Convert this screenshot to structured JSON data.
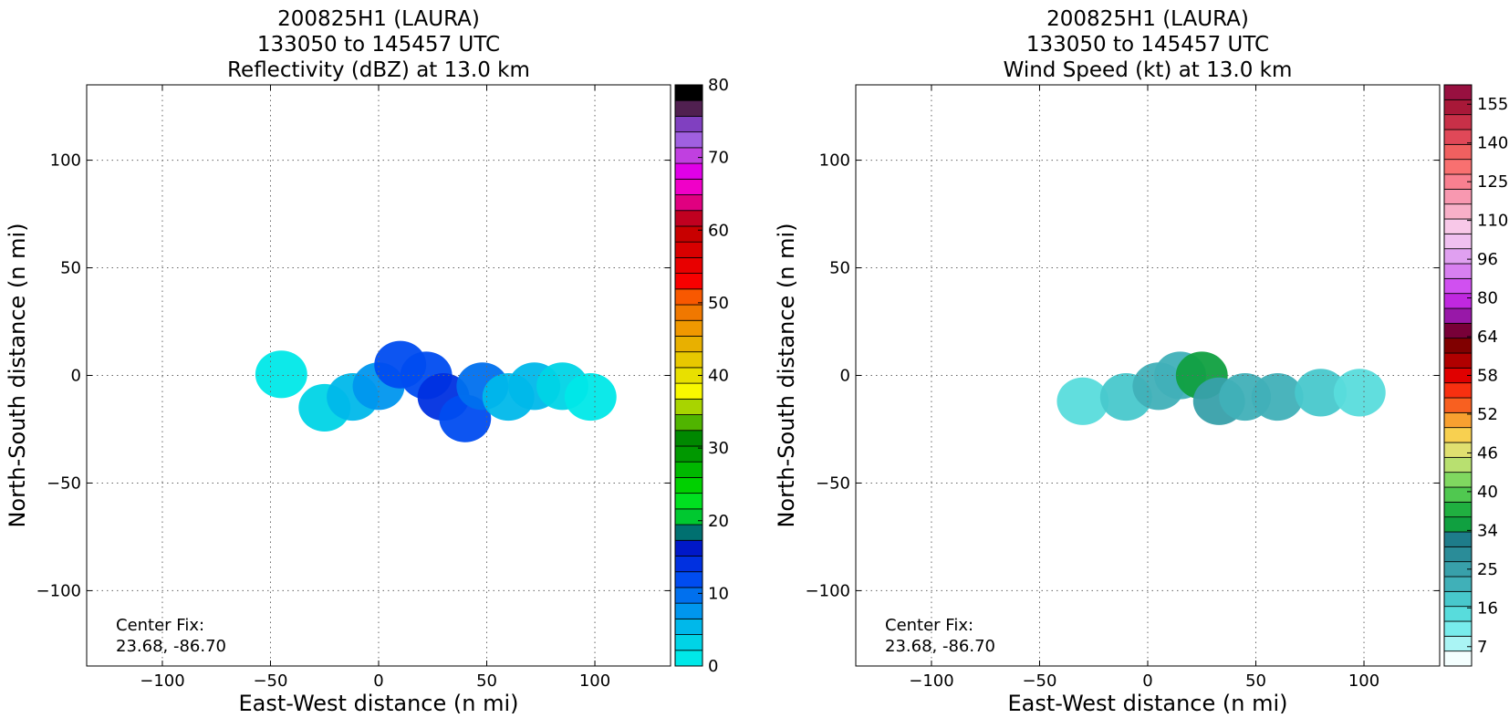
{
  "chart_data": [
    {
      "type": "heatmap",
      "title_lines": [
        "200825H1 (LAURA)",
        "133050 to 145457 UTC",
        "Reflectivity (dBZ) at 13.0 km"
      ],
      "xlabel": "East-West distance (n mi)",
      "ylabel": "North-South distance (n mi)",
      "xlim": [
        -135,
        135
      ],
      "ylim": [
        -135,
        135
      ],
      "xticks": [
        -100,
        -50,
        0,
        50,
        100
      ],
      "yticks": [
        -100,
        -50,
        0,
        50,
        100
      ],
      "xtick_labels": [
        "−100",
        "−50",
        "0",
        "50",
        "100"
      ],
      "ytick_labels": [
        "−100",
        "−50",
        "0",
        "50",
        "100"
      ],
      "grid": true,
      "annotation_lines": [
        "Center Fix:",
        "23.68, -86.70"
      ],
      "colorbar": {
        "min": 0,
        "max": 80,
        "ticks": [
          0,
          10,
          20,
          30,
          40,
          50,
          60,
          70,
          80
        ],
        "tick_labels": [
          "0",
          "10",
          "20",
          "30",
          "40",
          "50",
          "60",
          "70",
          "80"
        ],
        "colors": [
          "#00e8e8",
          "#00d4e6",
          "#00b8ea",
          "#0096ee",
          "#0070ee",
          "#004cf0",
          "#0030e0",
          "#0018c8",
          "#007070",
          "#00c830",
          "#00e020",
          "#00d000",
          "#00b800",
          "#009800",
          "#008800",
          "#50b400",
          "#a8d400",
          "#f8f800",
          "#e8e000",
          "#e8c800",
          "#e8b000",
          "#f09800",
          "#f07800",
          "#f85800",
          "#f80000",
          "#e80000",
          "#d80000",
          "#c80000",
          "#c00020",
          "#e00080",
          "#f000c8",
          "#e000e8",
          "#c040e0",
          "#a060e0",
          "#8040c0",
          "#502050",
          "#000000"
        ]
      },
      "echo_field": [
        {
          "x": -45,
          "y": 0.5,
          "dbz": 2
        },
        {
          "x": -25,
          "y": -15,
          "dbz": 3
        },
        {
          "x": -12,
          "y": -10,
          "dbz": 6
        },
        {
          "x": 0,
          "y": -5,
          "dbz": 8
        },
        {
          "x": 10,
          "y": 5,
          "dbz": 11
        },
        {
          "x": 22,
          "y": 0,
          "dbz": 12
        },
        {
          "x": 30,
          "y": -10,
          "dbz": 13
        },
        {
          "x": 40,
          "y": -20,
          "dbz": 12
        },
        {
          "x": 48,
          "y": -5,
          "dbz": 9
        },
        {
          "x": 60,
          "y": -10,
          "dbz": 6
        },
        {
          "x": 72,
          "y": -5,
          "dbz": 5
        },
        {
          "x": 85,
          "y": -5,
          "dbz": 3
        },
        {
          "x": 98,
          "y": -10,
          "dbz": 2
        }
      ]
    },
    {
      "type": "heatmap",
      "title_lines": [
        "200825H1 (LAURA)",
        "133050 to 145457 UTC",
        "Wind Speed (kt) at 13.0 km"
      ],
      "xlabel": "East-West distance (n mi)",
      "ylabel": "North-South distance (n mi)",
      "xlim": [
        -135,
        135
      ],
      "ylim": [
        -135,
        135
      ],
      "xticks": [
        -100,
        -50,
        0,
        50,
        100
      ],
      "yticks": [
        -100,
        -50,
        0,
        50,
        100
      ],
      "xtick_labels": [
        "−100",
        "−50",
        "0",
        "50",
        "100"
      ],
      "ytick_labels": [
        "−100",
        "−50",
        "0",
        "50",
        "100"
      ],
      "grid": true,
      "annotation_lines": [
        "Center Fix:",
        "23.68, -86.70"
      ],
      "colorbar": {
        "ticks": [
          7,
          16,
          25,
          34,
          40,
          46,
          52,
          58,
          64,
          80,
          96,
          110,
          125,
          140,
          155
        ],
        "tick_labels": [
          "7",
          "16",
          "25",
          "34",
          "40",
          "46",
          "52",
          "58",
          "64",
          "80",
          "96",
          "110",
          "125",
          "140",
          "155"
        ],
        "colors": [
          "#f4ffff",
          "#aaf4f4",
          "#78ecec",
          "#58dcdc",
          "#48c8cc",
          "#40b0b8",
          "#38a0aa",
          "#2a8c98",
          "#1e7c8a",
          "#10a040",
          "#20b040",
          "#50c850",
          "#80d860",
          "#b8e070",
          "#e0e070",
          "#f8d050",
          "#f8a030",
          "#f86020",
          "#f83010",
          "#e00000",
          "#b00000",
          "#800000",
          "#780038",
          "#9818a8",
          "#c028e0",
          "#d050f0",
          "#d880f0",
          "#e0a0f0",
          "#f0c0f0",
          "#f8c8e8",
          "#f8b0c8",
          "#f898b0",
          "#f88090",
          "#f87070",
          "#f06060",
          "#e04858",
          "#c83048",
          "#a81838",
          "#981040"
        ]
      },
      "wind_field": [
        {
          "x": -30,
          "y": -12,
          "kt": 18
        },
        {
          "x": -10,
          "y": -10,
          "kt": 22
        },
        {
          "x": 5,
          "y": -5,
          "kt": 24
        },
        {
          "x": 15,
          "y": 0,
          "kt": 26
        },
        {
          "x": 25,
          "y": 0,
          "kt": 38
        },
        {
          "x": 33,
          "y": -12,
          "kt": 28
        },
        {
          "x": 45,
          "y": -10,
          "kt": 26
        },
        {
          "x": 60,
          "y": -10,
          "kt": 24
        },
        {
          "x": 80,
          "y": -8,
          "kt": 22
        },
        {
          "x": 98,
          "y": -8,
          "kt": 18
        }
      ]
    }
  ]
}
